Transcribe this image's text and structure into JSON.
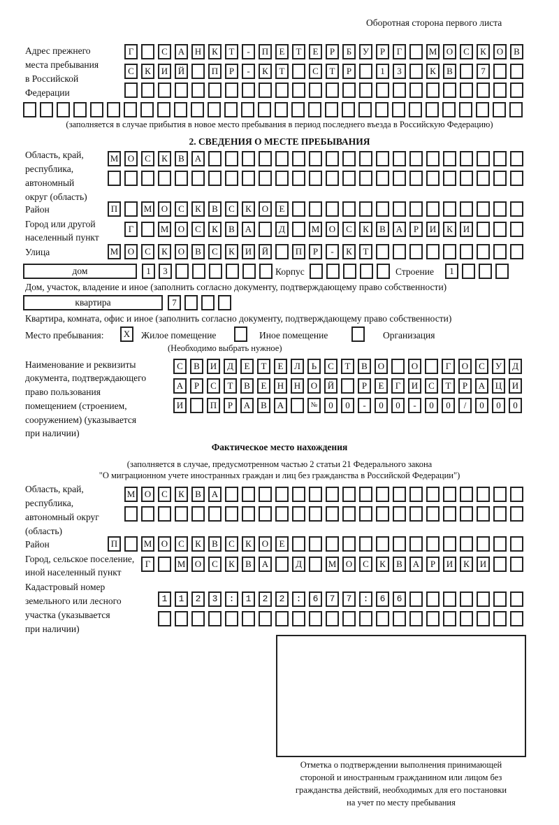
{
  "header": {
    "side_label": "Оборотная сторона первого листа"
  },
  "prev_address": {
    "label_lines": [
      "Адрес прежнего",
      "места пребывания",
      "в Российской",
      "Федерации"
    ],
    "rows": [
      "Г САНКТ-ПЕТЕРБУРГ МОСКОВ",
      "СКИЙ ПР-КТ СТР 13 КВ 7",
      "",
      ""
    ],
    "caption": "(заполняется в случае прибытия в новое место пребывания в период последнего въезда в Российскую Федерацию)"
  },
  "stay": {
    "section_title": "2. СВЕДЕНИЯ О МЕСТЕ ПРЕБЫВАНИЯ",
    "region_label_lines": [
      "Область, край,",
      "республика,",
      "автономный",
      "округ (область)"
    ],
    "region_rows": [
      "МОСКВА",
      ""
    ],
    "district_label": "Район",
    "district": "П МОСКВСКОЕ",
    "city_label_lines": [
      "Город или другой",
      "населенный пункт"
    ],
    "city": "Г МОСКВА Д МОСКВАРИКИ",
    "street_label": "Улица",
    "street": "МОСКОВСКИЙ ПР-КТ",
    "house_type": "дом",
    "house_number": "13",
    "korpus_label": "Корпус",
    "korpus": "",
    "building_label": "Строение",
    "building": "1",
    "house_caption": "Дом, участок, владение и иное (заполнить согласно документу, подтверждающему право собственности)",
    "apt_type": "квартира",
    "apt_number": "7",
    "apt_caption": "Квартира, комната, офис и иное (заполнить согласно документу, подтверждающему право собственности)",
    "place_label": "Место пребывания:",
    "options": [
      {
        "label": "Жилое помещение",
        "mark": "X"
      },
      {
        "label": "Иное помещение",
        "mark": ""
      },
      {
        "label": "Организация",
        "mark": ""
      }
    ],
    "choose_note": "(Необходимо выбрать нужное)",
    "doc_label_lines": [
      "Наименование и реквизиты",
      "документа, подтверждающего",
      "право пользования",
      "помещением (строением,",
      "сооружением) (указывается",
      "при наличии)"
    ],
    "doc_rows": [
      "СВИДЕТЕЛЬСТВО О ГОСУД",
      "АРСТВЕННОЙ РЕГИСТРАЦИ",
      "И ПРАВА №00-00-00/000"
    ]
  },
  "actual": {
    "title": "Фактическое место нахождения",
    "note_lines": [
      "(заполняется в случае, предусмотренном частью 2 статьи 21 Федерального закона",
      "\"О миграционном учете иностранных граждан и лиц без гражданства в Российской Федерации\")"
    ],
    "region_label_lines": [
      "Область, край,",
      "республика,",
      "автономный округ",
      "(область)"
    ],
    "region_rows": [
      "МОСКВА",
      ""
    ],
    "district_label": "Район",
    "district": "П МОСКВСКОЕ",
    "city_label_lines": [
      "Город, сельское поселение,",
      "иной населенный пункт"
    ],
    "city": "Г МОСКВА Д МОСКВАРИКИ",
    "cadastral_label_lines": [
      "Кадастровый номер",
      "земельного или лесного",
      "участка (указывается",
      "при наличии)"
    ],
    "cadastral_rows": [
      "1123:122:677:66",
      ""
    ]
  },
  "stamp": {
    "caption_lines": [
      "Отметка о подтверждении выполнения принимающей",
      "стороной и иностранным гражданином или лицом без",
      "гражданства действий, необходимых для его постановки",
      "на учет по месту пребывания"
    ]
  }
}
